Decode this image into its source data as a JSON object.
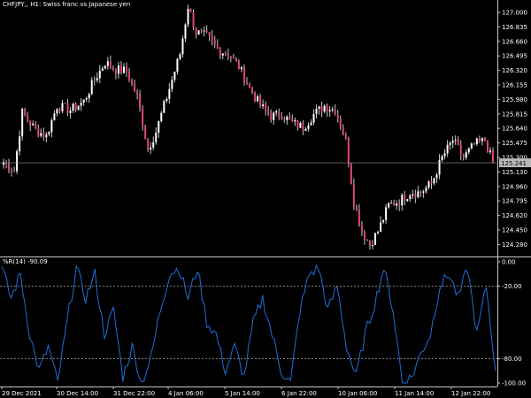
{
  "window": {
    "title": "CHFJPY,, H1:  Swiss franc vs Japanese yen"
  },
  "indicator": {
    "title": "%R(14) -90.09"
  },
  "colors": {
    "background": "#000000",
    "axis": "#c8c8c8",
    "candle_bull": "#ffffff",
    "candle_bear": "#e0457b",
    "wick": "#c8c8c8",
    "indicator_line": "#1e6fd9",
    "bid_line": "#9a9a9a",
    "bid_box": "#b8b8b8",
    "level_line": "#c8c8c8"
  },
  "price_axis": {
    "labels": [
      "127.000",
      "126.835",
      "126.660",
      "126.495",
      "126.320",
      "126.155",
      "125.980",
      "125.815",
      "125.640",
      "125.475",
      "125.300",
      "125.130",
      "124.960",
      "124.795",
      "124.620",
      "124.450",
      "124.280"
    ],
    "current": "125.241"
  },
  "indicator_axis": {
    "labels": [
      "0.00",
      "-20.00",
      "-80.00",
      "-100.00"
    ]
  },
  "time_axis": {
    "labels": [
      "29 Dec 2021",
      "30 Dec 14:00",
      "31 Dec 22:00",
      "4 Jan 06:00",
      "5 Jan 14:00",
      "6 Jan 22:00",
      "10 Jan 06:00",
      "11 Jan 14:00",
      "12 Jan 22:00"
    ]
  },
  "chart_data": [
    {
      "type": "candlestick",
      "title": "CHFJPY,, H1:  Swiss franc vs Japanese yen",
      "ylim": [
        124.2,
        127.08
      ],
      "close_path_anchors": [
        {
          "i": 0,
          "v": 125.25
        },
        {
          "i": 4,
          "v": 125.15
        },
        {
          "i": 7,
          "v": 125.82
        },
        {
          "i": 12,
          "v": 125.62
        },
        {
          "i": 16,
          "v": 125.55
        },
        {
          "i": 20,
          "v": 125.9
        },
        {
          "i": 25,
          "v": 125.85
        },
        {
          "i": 30,
          "v": 125.95
        },
        {
          "i": 34,
          "v": 126.2
        },
        {
          "i": 38,
          "v": 126.4
        },
        {
          "i": 42,
          "v": 126.32
        },
        {
          "i": 46,
          "v": 126.3
        },
        {
          "i": 50,
          "v": 126.0
        },
        {
          "i": 54,
          "v": 125.4
        },
        {
          "i": 57,
          "v": 125.6
        },
        {
          "i": 62,
          "v": 126.1
        },
        {
          "i": 66,
          "v": 126.5
        },
        {
          "i": 69,
          "v": 127.05
        },
        {
          "i": 72,
          "v": 126.75
        },
        {
          "i": 76,
          "v": 126.7
        },
        {
          "i": 80,
          "v": 126.55
        },
        {
          "i": 84,
          "v": 126.5
        },
        {
          "i": 88,
          "v": 126.35
        },
        {
          "i": 92,
          "v": 126.1
        },
        {
          "i": 96,
          "v": 125.9
        },
        {
          "i": 100,
          "v": 125.78
        },
        {
          "i": 104,
          "v": 125.8
        },
        {
          "i": 108,
          "v": 125.7
        },
        {
          "i": 112,
          "v": 125.65
        },
        {
          "i": 116,
          "v": 125.8
        },
        {
          "i": 120,
          "v": 125.9
        },
        {
          "i": 124,
          "v": 125.85
        },
        {
          "i": 128,
          "v": 125.5
        },
        {
          "i": 131,
          "v": 124.8
        },
        {
          "i": 134,
          "v": 124.45
        },
        {
          "i": 137,
          "v": 124.3
        },
        {
          "i": 140,
          "v": 124.45
        },
        {
          "i": 144,
          "v": 124.75
        },
        {
          "i": 148,
          "v": 124.8
        },
        {
          "i": 152,
          "v": 124.9
        },
        {
          "i": 156,
          "v": 124.9
        },
        {
          "i": 160,
          "v": 125.0
        },
        {
          "i": 164,
          "v": 125.3
        },
        {
          "i": 168,
          "v": 125.5
        },
        {
          "i": 172,
          "v": 125.3
        },
        {
          "i": 176,
          "v": 125.45
        },
        {
          "i": 180,
          "v": 125.5
        },
        {
          "i": 183,
          "v": 125.24
        }
      ]
    },
    {
      "type": "line",
      "title": "%R(14) -90.09",
      "ylim": [
        -100,
        0
      ],
      "levels": [
        -20,
        -80
      ],
      "y_anchors": [
        -5,
        -30,
        -10,
        -60,
        -90,
        -70,
        -100,
        -50,
        -5,
        -30,
        -10,
        -60,
        -40,
        -95,
        -70,
        -100,
        -80,
        -40,
        -10,
        -5,
        -30,
        -5,
        -50,
        -60,
        -90,
        -70,
        -95,
        -50,
        -30,
        -60,
        -90,
        -100,
        -40,
        -10,
        -5,
        -40,
        -20,
        -70,
        -95,
        -60,
        -35,
        -5,
        -40,
        -100,
        -95,
        -75,
        -60,
        -20,
        -10,
        -30,
        -5,
        -60,
        -20,
        -90
      ]
    }
  ]
}
